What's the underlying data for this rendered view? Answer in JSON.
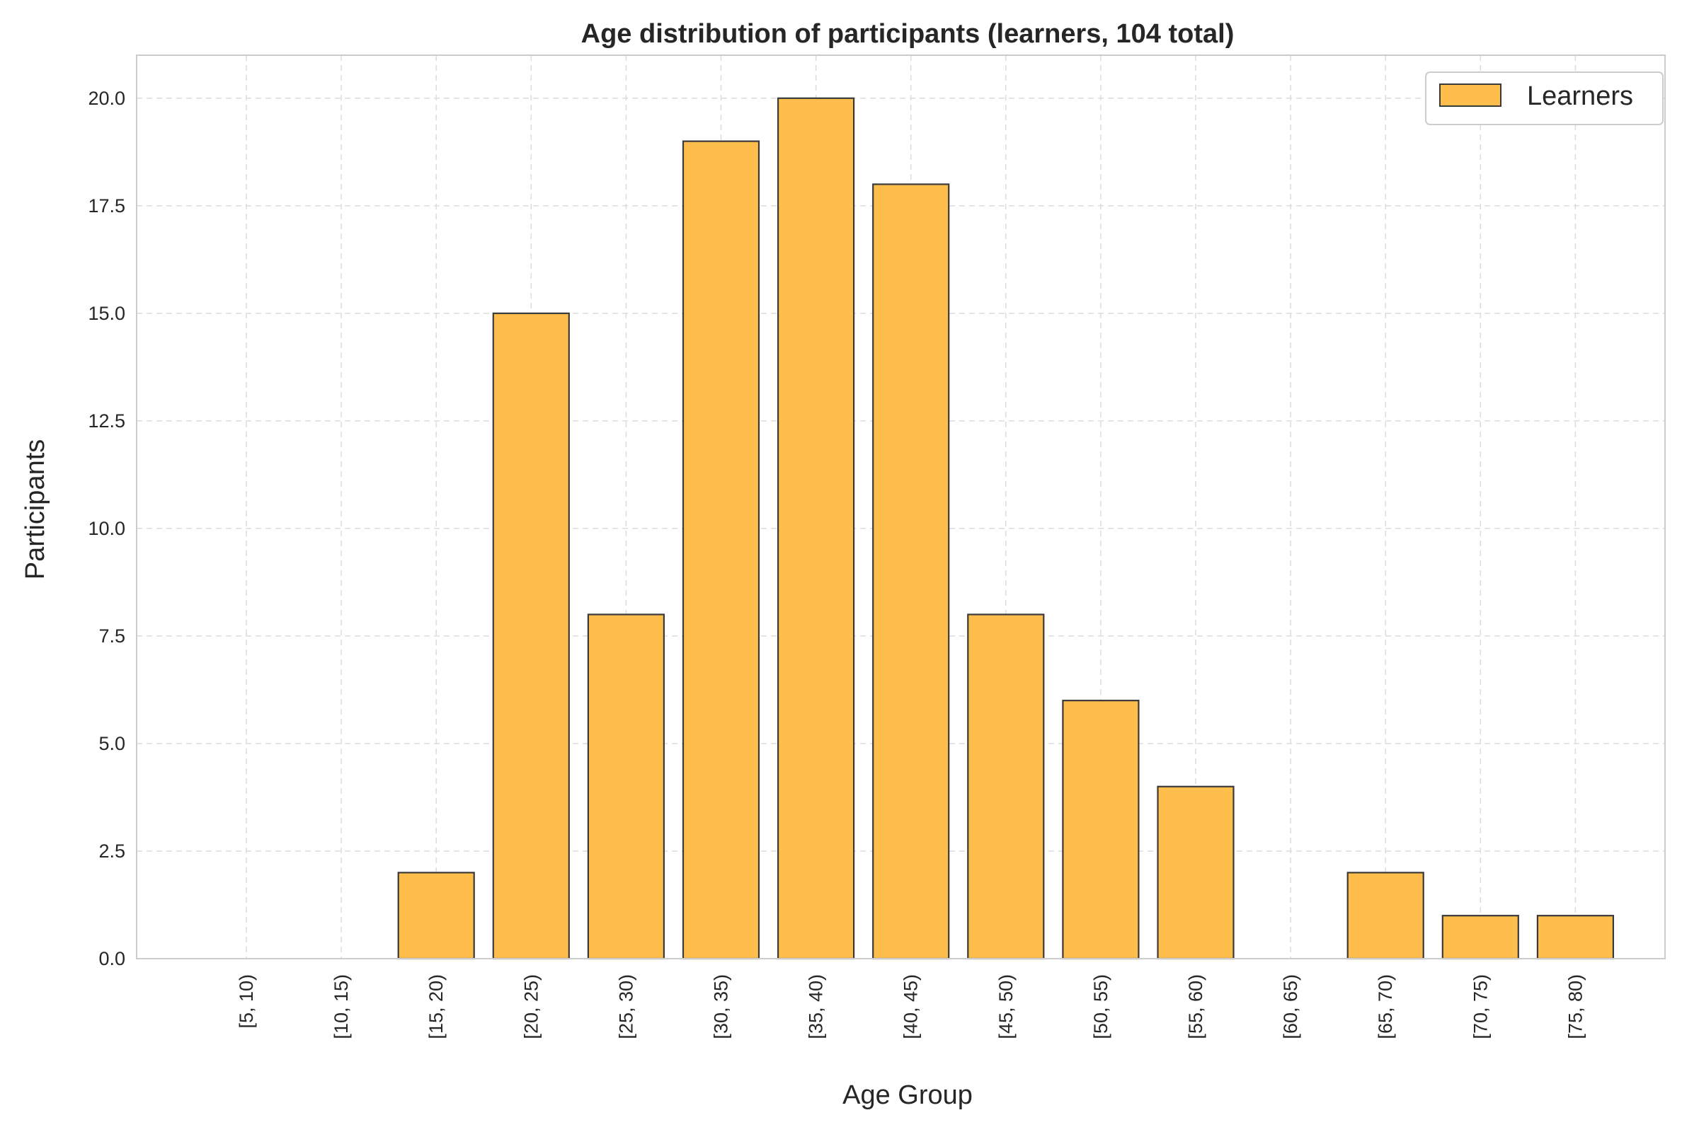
{
  "chart_data": {
    "type": "bar",
    "title": "Age distribution of participants (learners, 104 total)",
    "xlabel": "Age Group",
    "ylabel": "Participants",
    "categories": [
      "[5, 10)",
      "[10, 15)",
      "[15, 20)",
      "[20, 25)",
      "[25, 30)",
      "[30, 35)",
      "[35, 40)",
      "[40, 45)",
      "[45, 50)",
      "[50, 55)",
      "[55, 60)",
      "[60, 65)",
      "[65, 70)",
      "[70, 75)",
      "[75, 80)"
    ],
    "series": [
      {
        "name": "Learners",
        "values": [
          0,
          0,
          2,
          15,
          8,
          19,
          20,
          18,
          8,
          6,
          4,
          0,
          2,
          1,
          1
        ]
      }
    ],
    "ylim": [
      0,
      21
    ],
    "yticks": [
      0,
      2.5,
      5,
      7.5,
      10,
      12.5,
      15,
      17.5,
      20
    ],
    "ytick_labels": [
      "0.0",
      "2.5",
      "5.0",
      "7.5",
      "10.0",
      "12.5",
      "15.0",
      "17.5",
      "20.0"
    ],
    "grid": true,
    "legend_position": "top-right",
    "colors": {
      "bar_fill": "#ffbe4b",
      "bar_edge": "#3a3a3a",
      "grid": "#dcdcdc",
      "spine": "#cccccc",
      "text": "#262626"
    }
  }
}
